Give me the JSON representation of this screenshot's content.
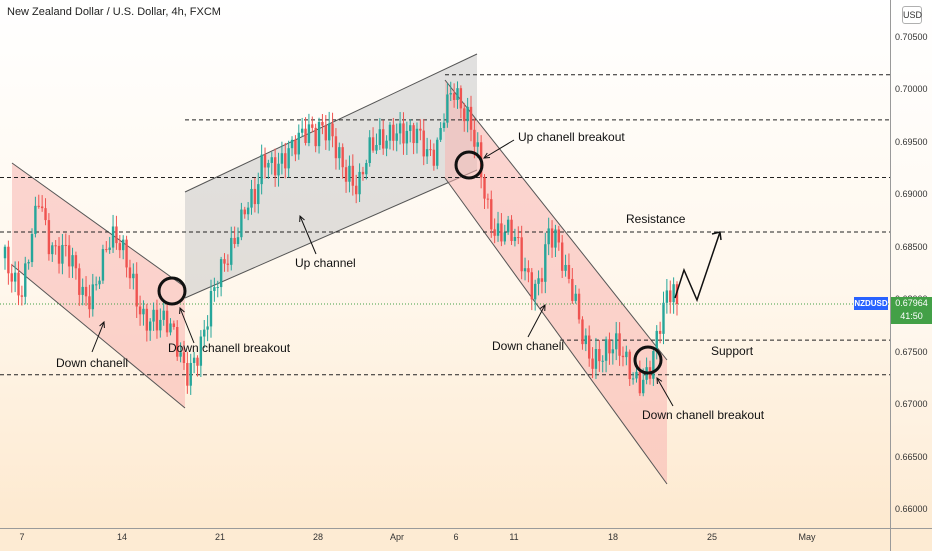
{
  "header": {
    "title": "New Zealand Dollar / U.S. Dollar, 4h, FXCM",
    "currency": "USD"
  },
  "price_axis": {
    "ticks": [
      "0.70500",
      "0.70000",
      "0.69500",
      "0.69000",
      "0.68500",
      "0.68000",
      "0.67500",
      "0.67000",
      "0.66500",
      "0.66000"
    ]
  },
  "time_axis": {
    "ticks": [
      "7",
      "14",
      "21",
      "28",
      "Apr",
      "6",
      "11",
      "18",
      "25",
      "May"
    ]
  },
  "last_price": {
    "symbol": "NZDUSD",
    "price": "0.67964",
    "countdown": "41:50"
  },
  "annotations": {
    "down_channel_1": "Down chanell",
    "breakout_1": "Down chanell breakout",
    "up_channel": "Up channel",
    "up_breakout": "Up chanell breakout",
    "down_channel_2": "Down chanell",
    "breakout_2": "Down chanell breakout",
    "resistance": "Resistance",
    "support": "Support"
  },
  "colors": {
    "bull": "#26a69a",
    "bear": "#ef5350",
    "down_channel_fill": "#f7b4b0",
    "up_channel_fill": "#c9c9c9",
    "price_badge": "#43a047",
    "symbol_badge": "#2962ff"
  },
  "chart_data": {
    "type": "candlestick",
    "title": "New Zealand Dollar / U.S. Dollar, 4h, FXCM",
    "ylim": [
      0.6595,
      0.7075
    ],
    "x_ticks": [
      "7",
      "14",
      "21",
      "28",
      "Apr",
      "6",
      "11",
      "18",
      "25",
      "May"
    ],
    "path_close": [
      0.684,
      0.68,
      0.679,
      0.686,
      0.692,
      0.687,
      0.684,
      0.683,
      0.682,
      0.681,
      0.682,
      0.684,
      0.685,
      0.684,
      0.683,
      0.682,
      0.68,
      0.679,
      0.677,
      0.676,
      0.675,
      0.674,
      0.676,
      0.677,
      0.679,
      0.681,
      0.684,
      0.688,
      0.691,
      0.69,
      0.692,
      0.691,
      0.693,
      0.696,
      0.697,
      0.696,
      0.694,
      0.695,
      0.696,
      0.695,
      0.693,
      0.69,
      0.692,
      0.694,
      0.696,
      0.698,
      0.697,
      0.695,
      0.694,
      0.693,
      0.695,
      0.7,
      0.701,
      0.697,
      0.695,
      0.693,
      0.69,
      0.688,
      0.687,
      0.685,
      0.682,
      0.681,
      0.683,
      0.688,
      0.686,
      0.681,
      0.679,
      0.677,
      0.676,
      0.676,
      0.675,
      0.674,
      0.673,
      0.673,
      0.674,
      0.675,
      0.677,
      0.679,
      0.6796
    ],
    "horizontal_levels": [
      0.7015,
      0.6972,
      0.6917,
      0.6865,
      0.6762,
      0.6729
    ],
    "current_price": 0.67964,
    "currency": "USD"
  }
}
